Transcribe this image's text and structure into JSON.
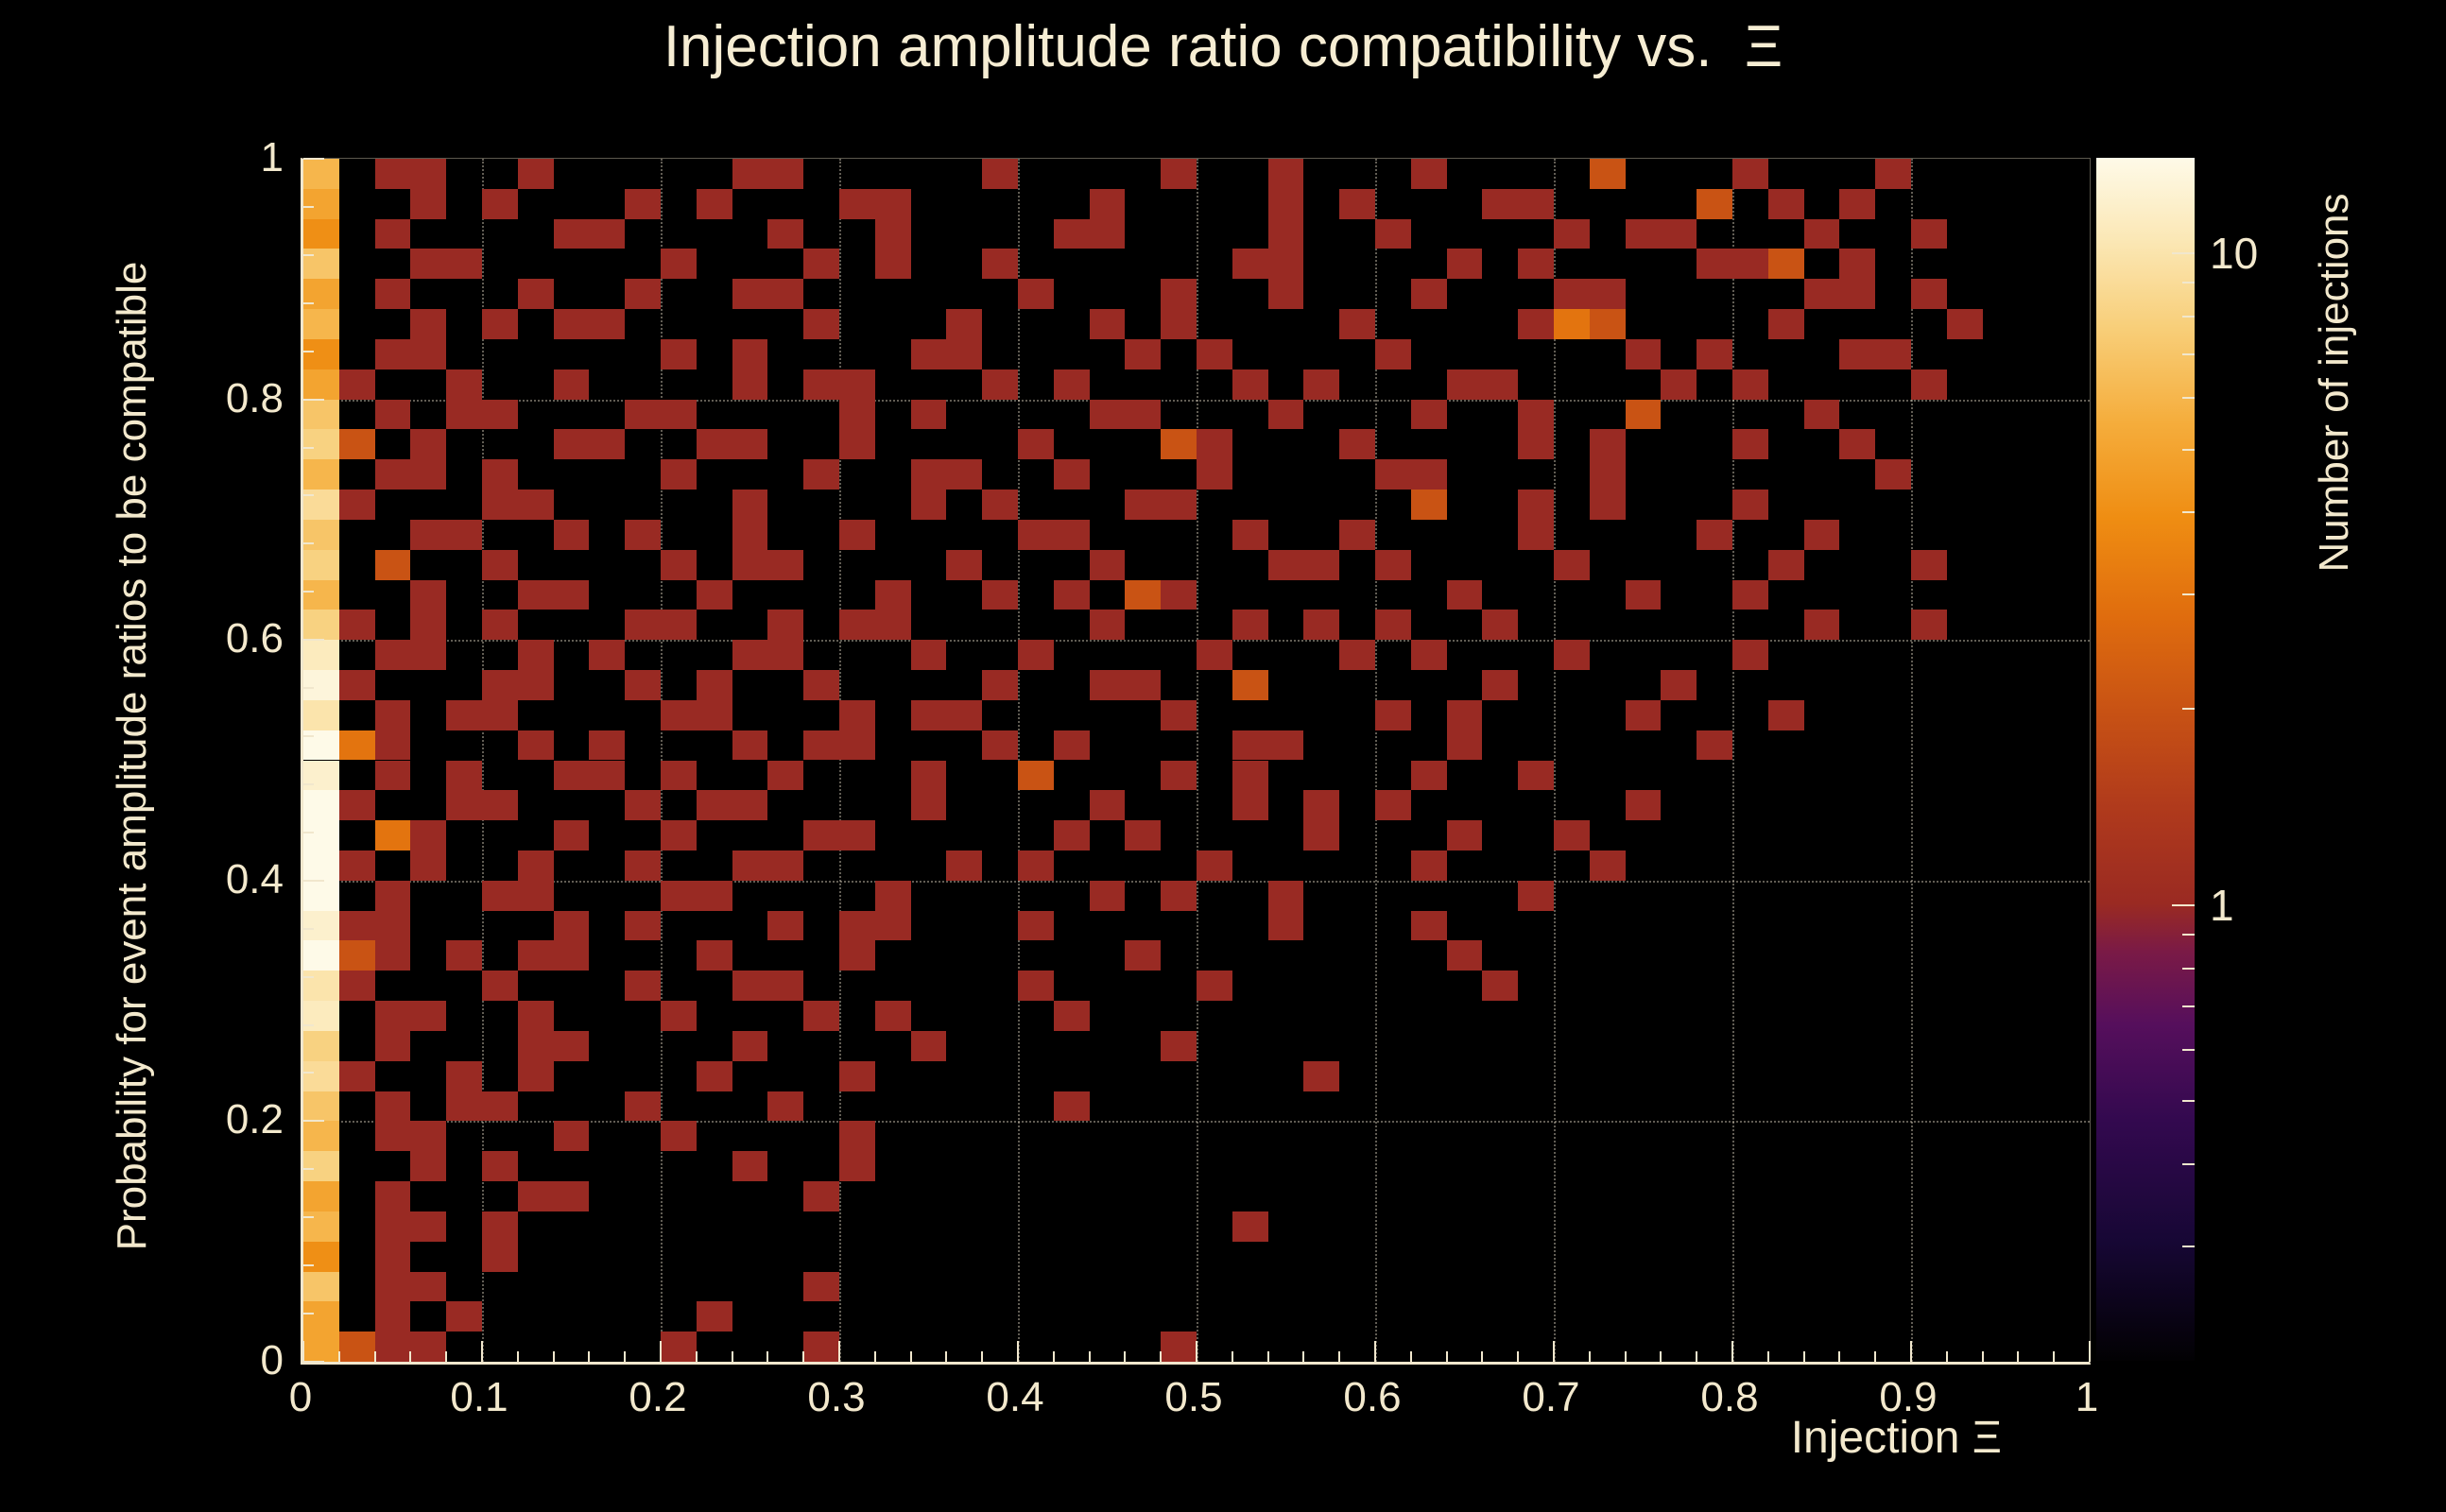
{
  "title": "Injection amplitude ratio compatibility vs.  Ξ",
  "colors": {
    "background": "#000000",
    "axis": "#f1e7cd",
    "text": "#f3e9cd",
    "grid": "rgba(243,233,209,0.40)"
  },
  "chart_data": {
    "type": "heatmap",
    "title": "Injection amplitude ratio compatibility vs.  Ξ",
    "xlabel": "Injection Ξ",
    "ylabel": "Probability for event amplitude ratios to be compatible",
    "zlabel": "Number of injections",
    "xlim": [
      0,
      1
    ],
    "ylim": [
      0,
      1
    ],
    "grid": true,
    "x_major_ticks": [
      0,
      0.1,
      0.2,
      0.3,
      0.4,
      0.5,
      0.6,
      0.7,
      0.8,
      0.9,
      1
    ],
    "x_tick_labels": [
      "0",
      "0.1",
      "0.2",
      "0.3",
      "0.4",
      "0.5",
      "0.6",
      "0.7",
      "0.8",
      "0.9",
      "1"
    ],
    "x_minor_step": 0.02,
    "y_major_ticks": [
      0,
      0.2,
      0.4,
      0.6,
      0.8,
      1
    ],
    "y_tick_labels": [
      "0",
      "0.2",
      "0.4",
      "0.6",
      "0.8",
      "1"
    ],
    "y_minor_step": 0.04,
    "colorbar": {
      "scale": "log",
      "min": 0.2,
      "max": 14,
      "labeled_ticks": [
        1,
        10
      ],
      "tick_label_texts": [
        "1",
        "10"
      ],
      "minor_ticks": [
        0.3,
        0.4,
        0.5,
        0.6,
        0.7,
        0.8,
        0.9,
        2,
        3,
        4,
        5,
        6,
        7,
        8,
        9
      ]
    },
    "palette": [
      [
        0.0,
        "#020103"
      ],
      [
        0.1,
        "#170735"
      ],
      [
        0.2,
        "#33094f"
      ],
      [
        0.28,
        "#560f5c"
      ],
      [
        0.34,
        "#7a1a46"
      ],
      [
        0.38,
        "#9a2a22"
      ],
      [
        0.46,
        "#b03a1c"
      ],
      [
        0.54,
        "#c85214"
      ],
      [
        0.62,
        "#e06d0e"
      ],
      [
        0.7,
        "#ef8d12"
      ],
      [
        0.78,
        "#f5ad3c"
      ],
      [
        0.86,
        "#f8cf7a"
      ],
      [
        0.93,
        "#fbe7b4"
      ],
      [
        1.0,
        "#fefae8"
      ]
    ],
    "bins": {
      "nx": 50,
      "ny": 40,
      "encoding": "rows listed top (y=1) to bottom (y=0); each row is 5 blocks of 10 x-bins; '.'=0 injections, '1'-'9'=count, 'a'-'k'=10-20",
      "rows": [
        [
          "6.11..1...",
          "..11.....1",
          "....1..1..",
          ".1....2...",
          "1...1....."
        ],
        [
          "5..1.1...1",
          ".1...11...",
          "..1....1.1",
          "...11....2",
          ".1.1......"
        ],
        [
          "4.1....11.",
          "...1..1...",
          ".11....1..",
          "1....1.11.",
          "..1..1...."
        ],
        [
          "7..11.....",
          "1...1.1..1",
          "......11..",
          "..1.1....1",
          "12.1......"
        ],
        [
          "5.1...1..1",
          "..11......",
          "1...1..1..",
          ".1...11...",
          "..11.1...."
        ],
        [
          "6..1.1.11.",
          "....1...1.",
          "..1.1....1",
          "....132...",
          ".1....1..."
        ],
        [
          "4.11......",
          "1.1....11.",
          "...1.1....",
          "1......1.1",
          "...11....."
        ],
        [
          "51..1..1..",
          "..1.11...1",
          ".1....1.1.",
          "..11....1.",
          "1....1...."
        ],
        [
          "7.1.11...1",
          "1....1.1..",
          "..11...1..",
          ".1..1..2..",
          "..1......."
        ],
        [
          "82.1...11.",
          ".11..1....",
          "1...21...1",
          "....1.1...",
          "1..1......"
        ],
        [
          "6.11.1....",
          "1...1..11.",
          ".1...1....",
          "11....1...",
          "....1....."
        ],
        [
          "91...11...",
          "..1....1.1",
          "...11.....",
          ".2..1.1...",
          "1........."
        ],
        [
          "7..11..1.1",
          "..1..1....",
          "11....1..1",
          "....1....1",
          "..1......."
        ],
        [
          "8.2..1....",
          "1.11....1.",
          "..1....11.",
          "1....1....",
          ".1...1...."
        ],
        [
          "6..1..11..",
          ".1....1..1",
          ".1.21.....",
          "..1....1..",
          "1........."
        ],
        [
          "81.1.1...1",
          "1..1.11...",
          "..1...1.1.",
          "1..1......",
          "..1..1...."
        ],
        [
          "b.11..1.1.",
          "..11...1..",
          "1....1...1",
          ".1...1....",
          "1........."
        ],
        [
          "d1...11..1",
          ".1..1....1",
          "..11..2...",
          "...1....1.",
          ".........."
        ],
        [
          "a.1.11....",
          "11...1.11.",
          "....1.....",
          "1.1....1..",
          ".1........"
        ],
        [
          "e31...1.1.",
          "..1.11...1",
          ".1....11..",
          "..1......1",
          ".........."
        ],
        [
          "c.1.1..11.",
          "1..1...1..",
          "2...1.1...",
          ".1..1.....",
          ".........."
        ],
        [
          "f1..11...1",
          ".11....1..",
          "..1...1.1.",
          "1......1..",
          ".........."
        ],
        [
          "k.31...1..",
          "1...11....",
          ".1.1....1.",
          "..1..1....",
          ".........."
        ],
        [
          "e1.1..1..1",
          "..11....1.",
          "1....1....",
          ".1....1...",
          ".........."
        ],
        [
          "h.1..11...",
          "11....1...",
          "..1.1..1..",
          "....1.....",
          ".........."
        ],
        [
          "c11....1.1",
          "...1.11...",
          "1......1..",
          ".1........",
          ".........."
        ],
        [
          "e21.1.11..",
          ".1...1....",
          "...1......",
          "..1.......",
          ".........."
        ],
        [
          "a1...1...1",
          "..11......",
          "1....1....",
          "...1......",
          ".........."
        ],
        [
          "b.11..1...",
          "1...1.1...",
          ".1........",
          "..........",
          ".........."
        ],
        [
          "8.1...11..",
          "..1....1..",
          "....1.....",
          "..........",
          ".........."
        ],
        [
          "91..1.1...",
          ".1...1....",
          "........1.",
          "..........",
          ".........."
        ],
        [
          "7.1.11...1",
          "...1......",
          ".1........",
          "..........",
          ".........."
        ],
        [
          "6.11...1..",
          "1....1....",
          "..........",
          "..........",
          ".........."
        ],
        [
          "8..1.1....",
          "..1..1....",
          "..........",
          "..........",
          ".........."
        ],
        [
          "5.1...11..",
          "....1.....",
          "..........",
          "..........",
          ".........."
        ],
        [
          "6.11.1....",
          "..........",
          "......1...",
          "..........",
          ".........."
        ],
        [
          "4.1..1....",
          "..........",
          "..........",
          "..........",
          ".........."
        ],
        [
          "7.11......",
          "....1.....",
          "..........",
          "..........",
          ".........."
        ],
        [
          "5.1.1.....",
          ".1........",
          "..........",
          "..........",
          ".........."
        ],
        [
          "5211......",
          "1...1.....",
          "....1.....",
          "..........",
          ".........."
        ]
      ]
    }
  }
}
